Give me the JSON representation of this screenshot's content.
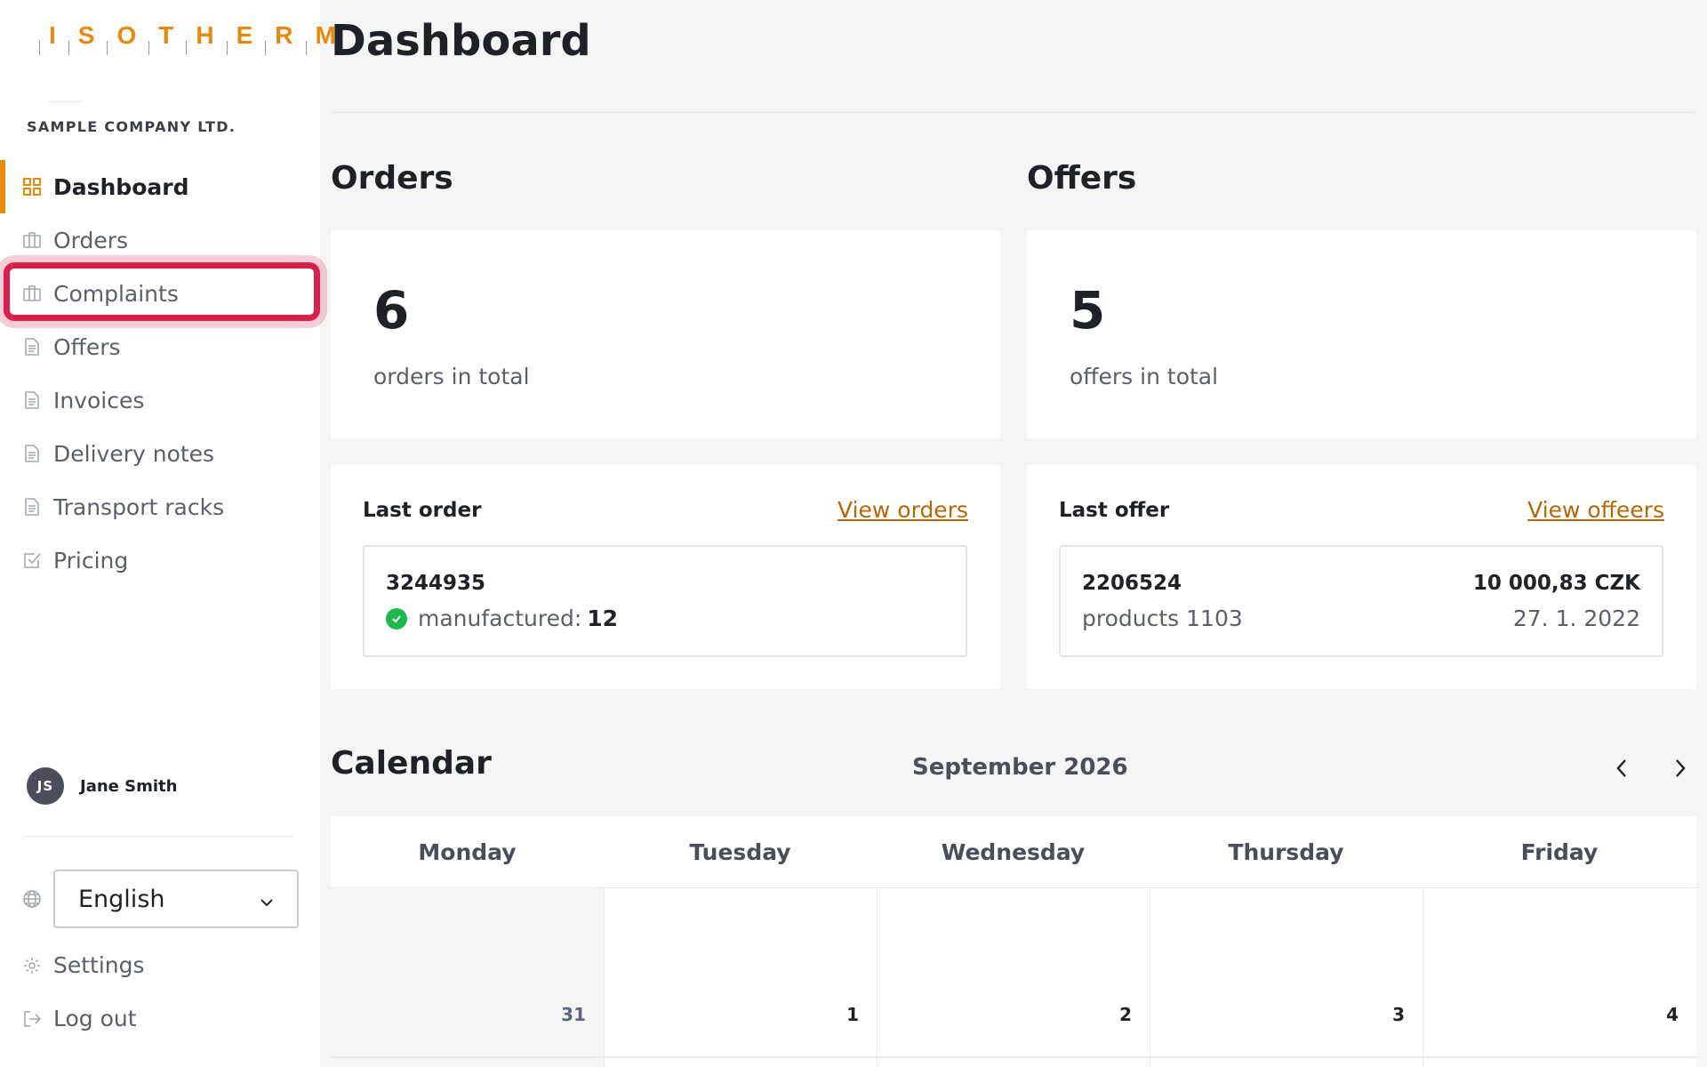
{
  "brand": {
    "logo_letters": [
      "I",
      "S",
      "O",
      "T",
      "H",
      "E",
      "R",
      "M"
    ],
    "accent": "#e8890c"
  },
  "company": "SAMPLE COMPANY LTD.",
  "nav": [
    {
      "label": "Dashboard",
      "icon": "grid-icon",
      "active": true
    },
    {
      "label": "Orders",
      "icon": "briefcase-icon"
    },
    {
      "label": "Complaints",
      "icon": "briefcase-icon",
      "highlighted": true
    },
    {
      "label": "Offers",
      "icon": "document-icon"
    },
    {
      "label": "Invoices",
      "icon": "document-icon"
    },
    {
      "label": "Delivery notes",
      "icon": "document-icon"
    },
    {
      "label": "Transport racks",
      "icon": "document-icon"
    },
    {
      "label": "Pricing",
      "icon": "checkbox-icon"
    }
  ],
  "user": {
    "initials": "JS",
    "name": "Jane Smith"
  },
  "language": {
    "selected": "English",
    "icon": "globe-icon"
  },
  "settings_label": "Settings",
  "logout_label": "Log out",
  "page_title": "Dashboard",
  "orders": {
    "title": "Orders",
    "total": "6",
    "total_label": "orders in total",
    "last_label": "Last order",
    "view_link": "View orders",
    "last": {
      "id": "3244935",
      "status_label": "manufactured:",
      "status_value": "12"
    }
  },
  "offers": {
    "title": "Offers",
    "total": "5",
    "total_label": "offers in total",
    "last_label": "Last offer",
    "view_link": "View offeers",
    "last": {
      "id": "2206524",
      "products": "products 1103",
      "amount": "10 000,83 CZK",
      "date": "27. 1. 2022"
    }
  },
  "calendar": {
    "title": "Calendar",
    "month": "September 2026",
    "weekdays": [
      "Monday",
      "Tuesday",
      "Wednesday",
      "Thursday",
      "Friday"
    ],
    "days": [
      {
        "num": "31",
        "other_month": true
      },
      {
        "num": "1"
      },
      {
        "num": "2"
      },
      {
        "num": "3"
      },
      {
        "num": "4"
      }
    ]
  }
}
